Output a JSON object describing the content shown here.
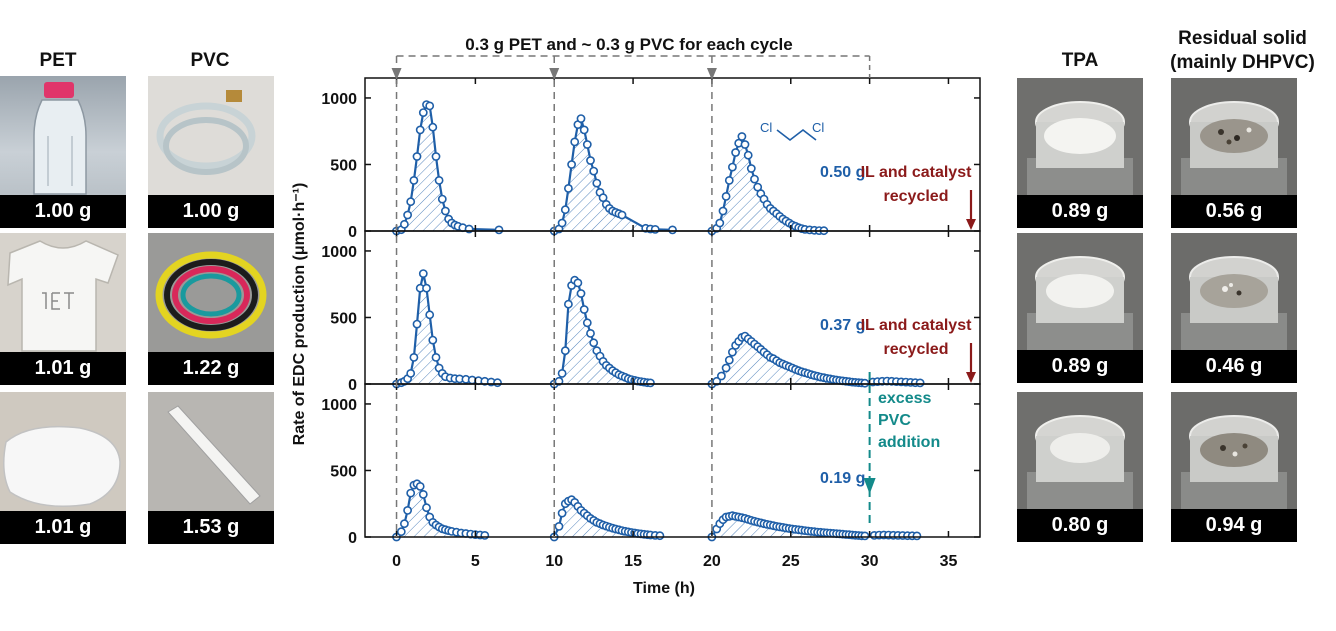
{
  "headers": {
    "pet": "PET",
    "pvc": "PVC",
    "tpa": "TPA",
    "residual_line1": "Residual solid",
    "residual_line2": "(mainly DHPVC)"
  },
  "photos": {
    "pet": [
      "1.00 g",
      "1.01 g",
      "1.01 g"
    ],
    "pvc": [
      "1.00 g",
      "1.22 g",
      "1.53 g"
    ],
    "tpa": [
      "0.89 g",
      "0.89 g",
      "0.80 g"
    ],
    "residual": [
      "0.56 g",
      "0.46 g",
      "0.94 g"
    ]
  },
  "colors": {
    "series": "#1f5fa8",
    "recycle_arrow": "#8b1a1a",
    "excess_arrow": "#138a8a",
    "dashed": "#777777"
  },
  "chart_data": {
    "type": "line",
    "top_label": "0.3 g PET and ~ 0.3 g PVC for each cycle",
    "xlabel": "Time (h)",
    "ylabel": "Rate of EDC production (μmol·h⁻¹)",
    "xlim": [
      -2,
      37
    ],
    "ylim": [
      0,
      1150
    ],
    "xticks": [
      0,
      5,
      10,
      15,
      20,
      25,
      30,
      35
    ],
    "yticks": [
      0,
      500,
      1000
    ],
    "cycle_starts": [
      0,
      10,
      20
    ],
    "molecule_label": "Cl    Cl",
    "panels": [
      {
        "amount_label": "0.50 g",
        "annotation": [
          "IL and catalyst",
          "recycled"
        ],
        "series": [
          {
            "x": [
              0,
              0.3,
              0.5,
              0.7,
              0.9,
              1.1,
              1.3,
              1.5,
              1.7,
              1.9,
              2.1,
              2.3,
              2.5,
              2.7,
              2.9,
              3.1,
              3.3,
              3.5,
              3.7,
              3.9,
              4.2,
              4.6,
              6.5
            ],
            "y": [
              0,
              10,
              50,
              120,
              220,
              380,
              560,
              760,
              890,
              950,
              940,
              780,
              560,
              380,
              240,
              150,
              90,
              60,
              45,
              35,
              25,
              15,
              8
            ]
          },
          {
            "x": [
              10,
              10.3,
              10.5,
              10.7,
              10.9,
              11.1,
              11.3,
              11.5,
              11.7,
              11.9,
              12.1,
              12.3,
              12.5,
              12.7,
              12.9,
              13.1,
              13.3,
              13.5,
              13.7,
              13.9,
              14.1,
              14.3,
              15.8,
              16.1,
              16.4,
              17.5
            ],
            "y": [
              0,
              15,
              60,
              160,
              320,
              500,
              670,
              800,
              845,
              760,
              650,
              530,
              450,
              360,
              290,
              250,
              200,
              170,
              150,
              140,
              130,
              120,
              20,
              15,
              12,
              8
            ]
          },
          {
            "x": [
              20,
              20.3,
              20.5,
              20.7,
              20.9,
              21.1,
              21.3,
              21.5,
              21.7,
              21.9,
              22.1,
              22.3,
              22.5,
              22.7,
              22.9,
              23.1,
              23.3,
              23.5,
              23.7,
              23.9,
              24.1,
              24.3,
              24.5,
              24.7,
              24.9,
              25.1,
              25.3,
              25.5,
              25.7,
              25.9,
              26.2,
              26.5,
              26.8,
              27.1
            ],
            "y": [
              0,
              20,
              60,
              150,
              260,
              380,
              480,
              590,
              660,
              710,
              650,
              570,
              470,
              390,
              330,
              280,
              240,
              200,
              170,
              150,
              130,
              110,
              90,
              75,
              60,
              45,
              35,
              25,
              18,
              12,
              8,
              5,
              3,
              2
            ]
          }
        ]
      },
      {
        "amount_label": "0.37 g",
        "annotation": [
          "IL and catalyst",
          "recycled"
        ],
        "series": [
          {
            "x": [
              0,
              0.3,
              0.5,
              0.7,
              0.9,
              1.1,
              1.3,
              1.5,
              1.7,
              1.9,
              2.1,
              2.3,
              2.5,
              2.7,
              2.9,
              3.1,
              3.4,
              3.7,
              4.0,
              4.4,
              4.8,
              5.2,
              5.6,
              6.0,
              6.4
            ],
            "y": [
              0,
              10,
              20,
              40,
              80,
              200,
              450,
              720,
              830,
              720,
              520,
              330,
              200,
              120,
              80,
              55,
              45,
              40,
              38,
              35,
              30,
              25,
              20,
              15,
              10
            ]
          },
          {
            "x": [
              10,
              10.3,
              10.5,
              10.7,
              10.9,
              11.1,
              11.3,
              11.5,
              11.7,
              11.9,
              12.1,
              12.3,
              12.5,
              12.7,
              12.9,
              13.1,
              13.3,
              13.5,
              13.7,
              13.9,
              14.1,
              14.3,
              14.5,
              14.7,
              14.9,
              15.1,
              15.3,
              15.5,
              15.7,
              15.9,
              16.1
            ],
            "y": [
              0,
              20,
              80,
              250,
              600,
              740,
              780,
              760,
              680,
              560,
              460,
              380,
              310,
              250,
              210,
              170,
              140,
              120,
              100,
              85,
              70,
              60,
              50,
              40,
              33,
              27,
              22,
              18,
              14,
              10,
              8
            ]
          },
          {
            "x": [
              20,
              20.3,
              20.6,
              20.9,
              21.1,
              21.3,
              21.5,
              21.7,
              21.9,
              22.1,
              22.3,
              22.5,
              22.7,
              22.9,
              23.1,
              23.3,
              23.5,
              23.7,
              23.9,
              24.1,
              24.3,
              24.5,
              24.7,
              24.9,
              25.1,
              25.3,
              25.5,
              25.7,
              25.9,
              26.1,
              26.3,
              26.5,
              26.7,
              26.9,
              27.1,
              27.3,
              27.5,
              27.7,
              27.9,
              28.1,
              28.3,
              28.5,
              28.7,
              28.9,
              29.1,
              29.3,
              29.5,
              29.7
            ],
            "y": [
              0,
              20,
              60,
              120,
              180,
              240,
              290,
              320,
              350,
              360,
              340,
              320,
              300,
              280,
              260,
              240,
              220,
              200,
              190,
              175,
              160,
              150,
              140,
              130,
              120,
              110,
              100,
              92,
              85,
              78,
              70,
              64,
              58,
              52,
              47,
              42,
              38,
              34,
              30,
              26,
              23,
              20,
              17,
              14,
              12,
              10,
              8,
              6
            ]
          },
          {
            "x": [
              30.2,
              30.5,
              30.8,
              31.1,
              31.4,
              31.7,
              32.0,
              32.3,
              32.6,
              32.9,
              33.2
            ],
            "y": [
              15,
              18,
              20,
              22,
              20,
              18,
              16,
              14,
              12,
              10,
              8
            ]
          }
        ]
      },
      {
        "amount_label": "0.19 g",
        "annotation": [
          "excess",
          "PVC",
          "addition"
        ],
        "series": [
          {
            "x": [
              0,
              0.3,
              0.5,
              0.7,
              0.9,
              1.1,
              1.3,
              1.5,
              1.7,
              1.9,
              2.1,
              2.3,
              2.5,
              2.7,
              2.9,
              3.1,
              3.3,
              3.5,
              3.8,
              4.1,
              4.4,
              4.7,
              5.0,
              5.3,
              5.6
            ],
            "y": [
              0,
              40,
              100,
              200,
              330,
              390,
              400,
              380,
              320,
              220,
              150,
              110,
              90,
              75,
              62,
              55,
              48,
              42,
              36,
              30,
              26,
              22,
              18,
              15,
              12
            ]
          },
          {
            "x": [
              10,
              10.3,
              10.5,
              10.7,
              10.9,
              11.1,
              11.3,
              11.5,
              11.7,
              11.9,
              12.1,
              12.3,
              12.5,
              12.7,
              12.9,
              13.1,
              13.3,
              13.5,
              13.7,
              13.9,
              14.1,
              14.3,
              14.5,
              14.7,
              14.9,
              15.1,
              15.3,
              15.5,
              15.7,
              15.9,
              16.1,
              16.4,
              16.7
            ],
            "y": [
              0,
              80,
              180,
              250,
              270,
              280,
              260,
              230,
              200,
              180,
              160,
              140,
              125,
              110,
              100,
              90,
              82,
              74,
              66,
              60,
              54,
              48,
              43,
              38,
              34,
              30,
              26,
              23,
              20,
              17,
              15,
              12,
              10
            ]
          },
          {
            "x": [
              20,
              20.3,
              20.5,
              20.7,
              20.9,
              21.1,
              21.3,
              21.5,
              21.7,
              21.9,
              22.1,
              22.3,
              22.5,
              22.7,
              22.9,
              23.1,
              23.3,
              23.5,
              23.7,
              23.9,
              24.1,
              24.3,
              24.5,
              24.7,
              24.9,
              25.1,
              25.3,
              25.5,
              25.7,
              25.9,
              26.1,
              26.3,
              26.5,
              26.7,
              26.9,
              27.1,
              27.3,
              27.5,
              27.7,
              27.9,
              28.1,
              28.3,
              28.5,
              28.7,
              28.9,
              29.1,
              29.3,
              29.5,
              29.7
            ],
            "y": [
              0,
              60,
              100,
              130,
              150,
              155,
              160,
              155,
              150,
              145,
              140,
              132,
              125,
              118,
              112,
              106,
              100,
              95,
              90,
              85,
              80,
              76,
              72,
              68,
              64,
              60,
              57,
              54,
              51,
              48,
              45,
              42,
              40,
              37,
              35,
              33,
              31,
              29,
              27,
              25,
              23,
              21,
              19,
              17,
              15,
              13,
              11,
              9,
              8
            ]
          },
          {
            "x": [
              30.3,
              30.6,
              30.9,
              31.2,
              31.5,
              31.8,
              32.1,
              32.4,
              32.7,
              33.0
            ],
            "y": [
              12,
              14,
              15,
              14,
              13,
              12,
              11,
              10,
              9,
              8
            ]
          }
        ]
      }
    ]
  }
}
